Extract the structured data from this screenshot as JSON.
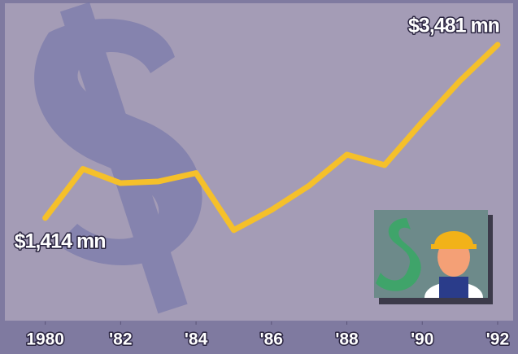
{
  "chart_data": {
    "type": "line",
    "x": [
      1980,
      1981,
      1982,
      1983,
      1984,
      1985,
      1986,
      1987,
      1988,
      1989,
      1990,
      1991,
      1992
    ],
    "values": [
      1414,
      2000,
      1830,
      1850,
      1950,
      1270,
      1510,
      1800,
      2170,
      2045,
      2560,
      3050,
      3481
    ],
    "value_labels": [
      "$1,414 mn",
      null,
      null,
      null,
      null,
      null,
      null,
      null,
      null,
      null,
      null,
      null,
      "$3,481 mn"
    ],
    "color": "#f5c02a",
    "xlim": [
      1978.8,
      1992.54
    ],
    "xticks": [
      1980,
      {
        "value": 1982,
        "label": "'82"
      },
      {
        "value": 1984,
        "label": "'84"
      },
      {
        "value": 1986,
        "label": "'86"
      },
      {
        "value": 1988,
        "label": "'88"
      },
      {
        "value": 1990,
        "label": "'90"
      },
      {
        "value": 1992,
        "label": "'92"
      }
    ],
    "ylim": [
      180,
      4015
    ]
  }
}
